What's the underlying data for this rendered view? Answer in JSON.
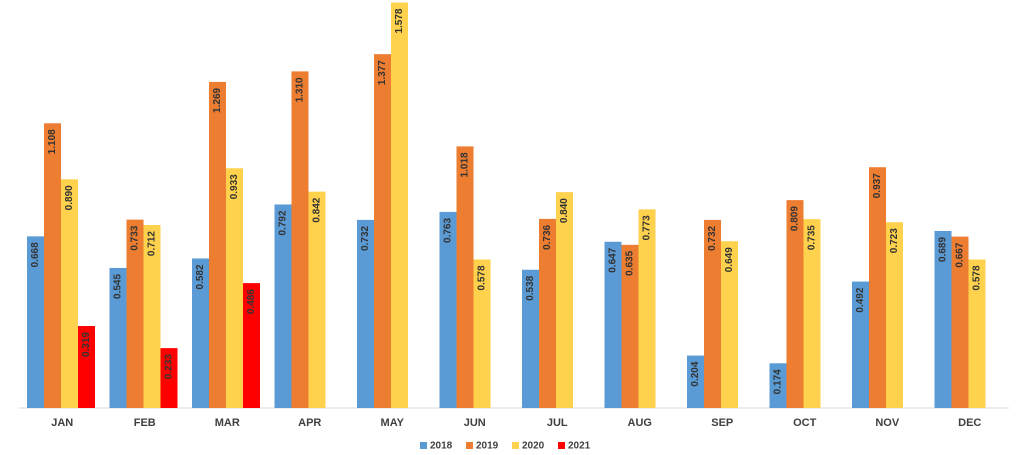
{
  "chart_data": {
    "type": "bar",
    "categories": [
      "JAN",
      "FEB",
      "MAR",
      "APR",
      "MAY",
      "JUN",
      "JUL",
      "AUG",
      "SEP",
      "OCT",
      "NOV",
      "DEC"
    ],
    "series": [
      {
        "name": "2018",
        "color": "#5b9bd5",
        "values": [
          0.668,
          0.545,
          0.582,
          0.792,
          0.732,
          0.763,
          0.538,
          0.647,
          0.204,
          0.174,
          0.492,
          0.689
        ],
        "value_labels": [
          "0.668",
          "0.545",
          "0.582",
          "0.792",
          "0.732",
          "0.763",
          "0.538",
          "0.647",
          "0.204",
          "0.174",
          "0.492",
          "0.689"
        ]
      },
      {
        "name": "2019",
        "color": "#ed7d31",
        "values": [
          1.108,
          0.733,
          1.269,
          1.31,
          1.377,
          1.018,
          0.736,
          0.635,
          0.732,
          0.809,
          0.937,
          0.667
        ],
        "value_labels": [
          "1.108",
          "0.733",
          "1.269",
          "1.310",
          "1.377",
          "1.018",
          "0.736",
          "0.635",
          "0.732",
          "0.809",
          "0.937",
          "0.667"
        ]
      },
      {
        "name": "2020",
        "color": "#ffd24d",
        "values": [
          0.89,
          0.712,
          0.933,
          0.842,
          1.578,
          0.578,
          0.84,
          0.773,
          0.649,
          0.735,
          0.723,
          0.578
        ],
        "value_labels": [
          "0.890",
          "0.712",
          "0.933",
          "0.842",
          "1.578",
          "0.578",
          "0.840",
          "0.773",
          "0.649",
          "0.735",
          "0.723",
          "0.578"
        ]
      },
      {
        "name": "2021",
        "color": "#ff0000",
        "values": [
          0.319,
          0.233,
          0.486,
          null,
          null,
          null,
          null,
          null,
          null,
          null,
          null,
          null
        ],
        "value_labels": [
          "0.319",
          "0.233",
          "0.486",
          null,
          null,
          null,
          null,
          null,
          null,
          null,
          null,
          null
        ]
      }
    ],
    "ylim": [
      0,
      1.58
    ]
  }
}
